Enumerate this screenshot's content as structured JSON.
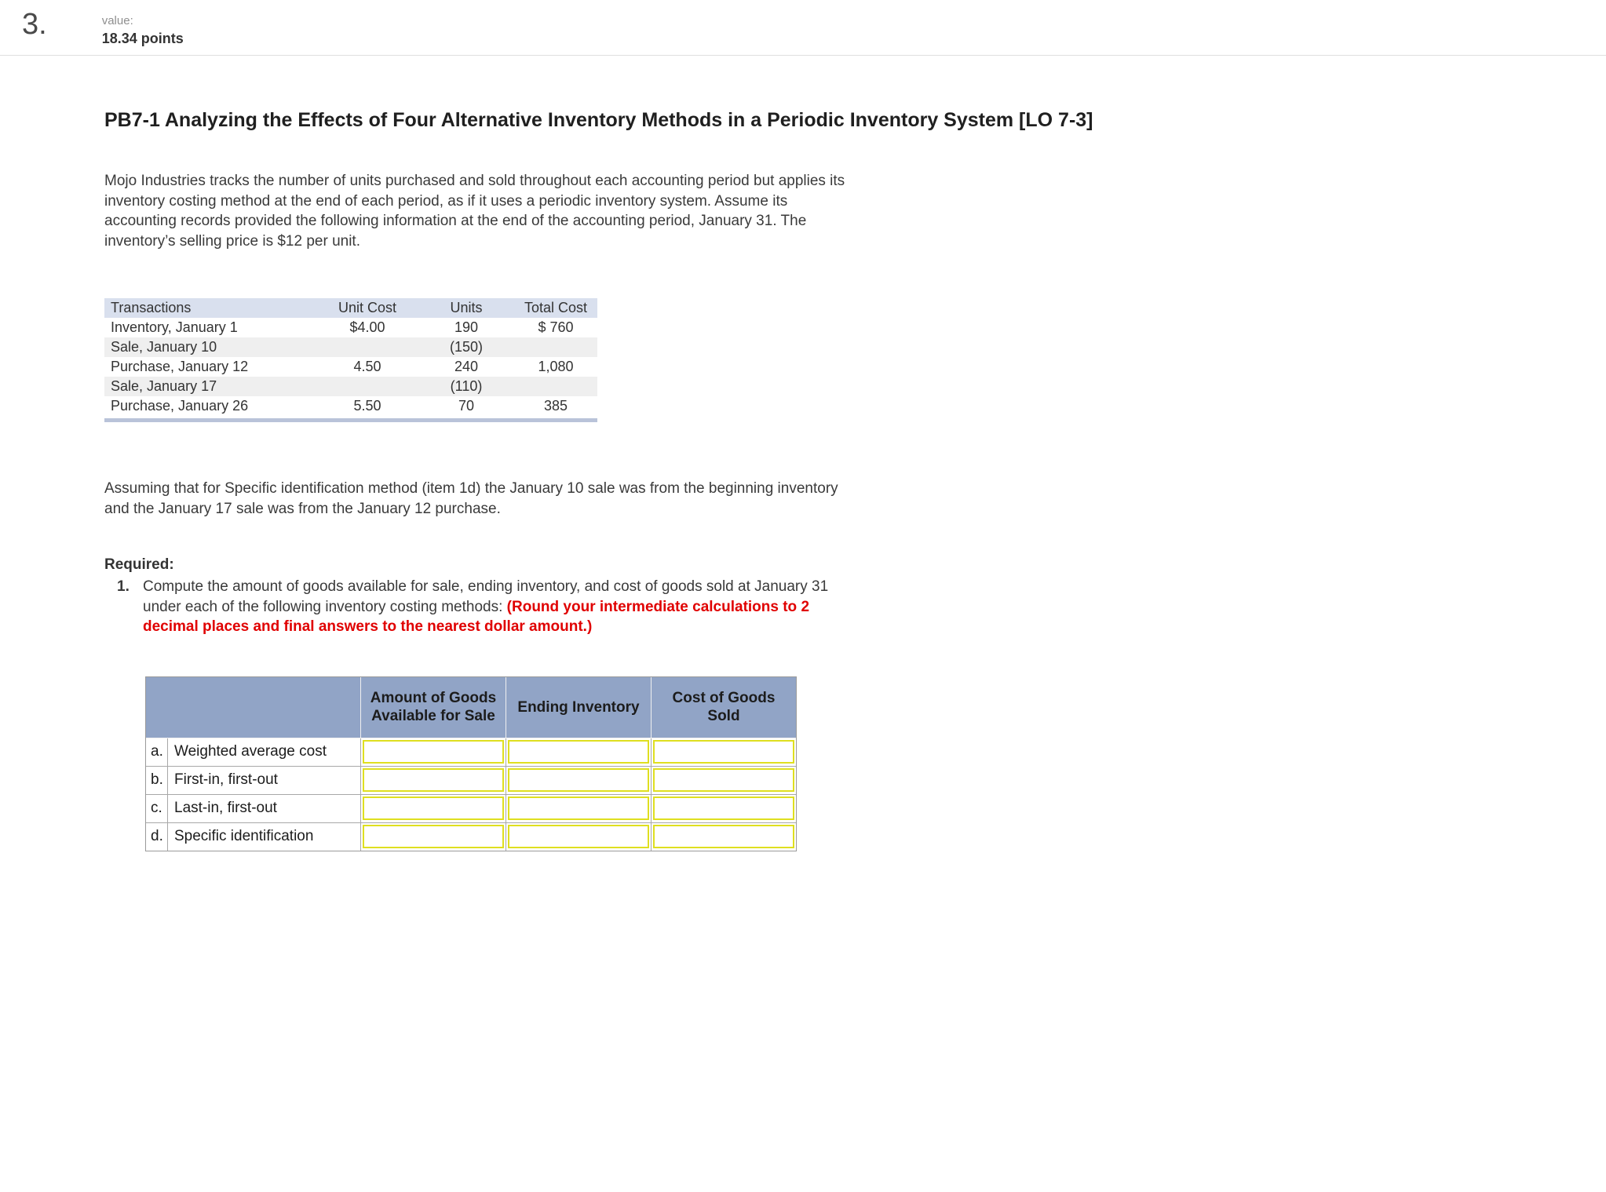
{
  "colors": {
    "answer_header_bg": "#91a4c6",
    "transactions_header_bg": "#d9e0ee",
    "row_alt_bg": "#efefef",
    "table_bottom_rule": "#b9c3d9",
    "input_border_yellow": "#dfdf20",
    "note_red": "#e00000"
  },
  "header": {
    "question_number": "3.",
    "value_label": "value:",
    "points": "18.34 points"
  },
  "problem": {
    "title": "PB7-1 Analyzing the Effects of Four Alternative Inventory Methods in a Periodic Inventory System [LO 7-3]",
    "intro": "Mojo Industries tracks the number of units purchased and sold throughout each accounting period but applies its inventory costing method at the end of each period, as if it uses a periodic inventory system. Assume its accounting records provided the following information at the end of the accounting period, January 31. The inventory’s selling price is $12 per unit.",
    "assumption": "Assuming that for Specific identification method (item 1d) the January 10 sale was from the beginning inventory and the January 17 sale was from the January 12 purchase.",
    "required_label": "Required:",
    "requirement_number": "1.",
    "requirement_text": "Compute the amount of goods available for sale, ending inventory, and cost of goods sold at January 31 under each of the following inventory costing methods: ",
    "requirement_note": "(Round your intermediate calculations to 2 decimal places and final answers to the nearest dollar amount.)"
  },
  "transactions_table": {
    "headers": [
      "Transactions",
      "Unit Cost",
      "Units",
      "Total Cost"
    ],
    "rows": [
      {
        "transaction": "Inventory, January 1",
        "unit_cost": "$4.00",
        "units": "190",
        "total_cost": "$ 760"
      },
      {
        "transaction": "Sale, January 10",
        "unit_cost": "",
        "units": "(150)",
        "total_cost": ""
      },
      {
        "transaction": "Purchase, January 12",
        "unit_cost": "4.50",
        "units": "240",
        "total_cost": "1,080"
      },
      {
        "transaction": "Sale, January 17",
        "unit_cost": "",
        "units": "(110)",
        "total_cost": ""
      },
      {
        "transaction": "Purchase, January 26",
        "unit_cost": "5.50",
        "units": "70",
        "total_cost": "385"
      }
    ]
  },
  "answer_table": {
    "corner_header": "",
    "column_headers": [
      "Amount of Goods Available for Sale",
      "Ending Inventory",
      "Cost of Goods Sold"
    ],
    "rows": [
      {
        "letter": "a.",
        "label": "Weighted average cost"
      },
      {
        "letter": "b.",
        "label": "First-in, first-out"
      },
      {
        "letter": "c.",
        "label": "Last-in, first-out"
      },
      {
        "letter": "d.",
        "label": "Specific identification"
      }
    ]
  }
}
